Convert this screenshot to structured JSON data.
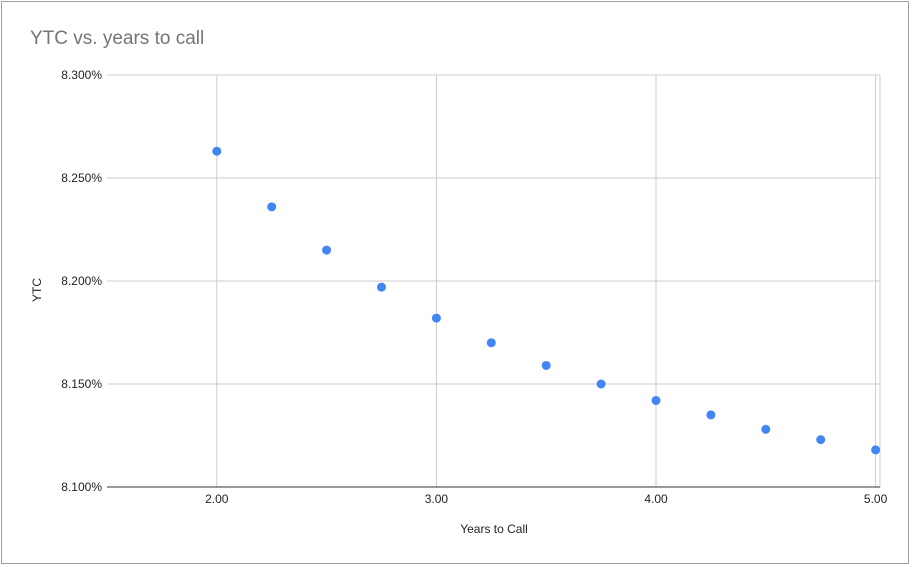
{
  "chart_data": {
    "type": "scatter",
    "title": "YTC vs. years to call",
    "xlabel": "Years to Call",
    "ylabel": "YTC",
    "xlim": [
      1.5,
      5.02
    ],
    "ylim": [
      8.1,
      8.3
    ],
    "x_ticks": [
      "2.00",
      "3.00",
      "4.00",
      "5.00"
    ],
    "y_ticks": [
      "8.100%",
      "8.150%",
      "8.200%",
      "8.250%",
      "8.300%"
    ],
    "grid": true,
    "series": [
      {
        "color": "#4285f4",
        "x": [
          2.0,
          2.25,
          2.5,
          2.75,
          3.0,
          3.25,
          3.5,
          3.75,
          4.0,
          4.25,
          4.5,
          4.75,
          5.0
        ],
        "y": [
          8.263,
          8.236,
          8.215,
          8.197,
          8.182,
          8.17,
          8.159,
          8.15,
          8.142,
          8.135,
          8.128,
          8.123,
          8.118
        ]
      }
    ]
  }
}
